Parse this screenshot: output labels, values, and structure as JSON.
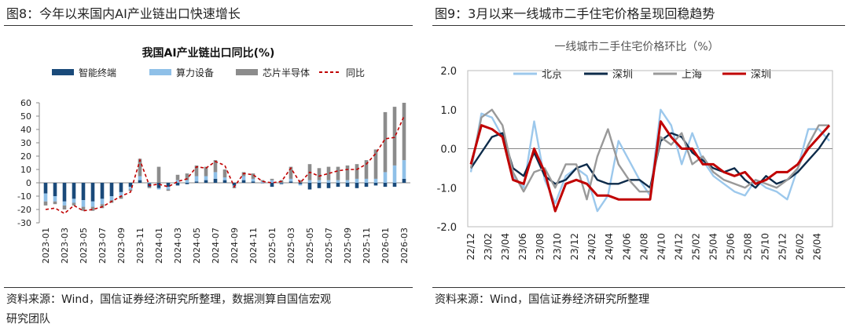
{
  "left_panel": {
    "figure_title": "图8：今年以来国内AI产业链出口快速增长",
    "source_line1": "资料来源：Wind，国信证券经济研究所整理，数据测算自国信宏观",
    "source_line2": "研究团队"
  },
  "right_panel": {
    "figure_title": "图9：3月以来一线城市二手住宅价格呈现回稳趋势",
    "source": "资料来源：Wind，国信证券经济研究所整理"
  },
  "colors": {
    "dark_blue": "#1a4a7a",
    "light_blue": "#8fc0e8",
    "gray": "#8c8c8c",
    "red": "#c00000",
    "beijing": "#9cc8ec",
    "shanghai_line": "#999999",
    "shenzhen_dark": "#0d2b4a"
  },
  "chart_data": [
    {
      "type": "bar",
      "title": "我国AI产业链出口同比(%)",
      "stacked": true,
      "ylim": [
        -30,
        60
      ],
      "y_ticks": [
        -30,
        -20,
        -10,
        0,
        10,
        20,
        30,
        40,
        50,
        60
      ],
      "x_tick_labels": [
        "2023-01",
        "2023-03",
        "2023-05",
        "2023-07",
        "2023-09",
        "2023-11",
        "2024-01",
        "2024-03",
        "2024-05",
        "2024-07",
        "2024-09",
        "2024-11",
        "2025-01",
        "2025-03",
        "2025-05",
        "2025-07",
        "2025-09",
        "2025-11",
        "2026-01",
        "2026-03"
      ],
      "categories": [
        "2023-01",
        "2023-02",
        "2023-03",
        "2023-04",
        "2023-05",
        "2023-06",
        "2023-07",
        "2023-08",
        "2023-09",
        "2023-10",
        "2023-11",
        "2023-12",
        "2024-01",
        "2024-02",
        "2024-03",
        "2024-04",
        "2024-05",
        "2024-06",
        "2024-07",
        "2024-08",
        "2024-09",
        "2024-10",
        "2024-11",
        "2024-12",
        "2025-01",
        "2025-02",
        "2025-03",
        "2025-04",
        "2025-05",
        "2025-06",
        "2025-07",
        "2025-08",
        "2025-09",
        "2025-10",
        "2025-11",
        "2025-12",
        "2026-01",
        "2026-02",
        "2026-03"
      ],
      "legend_position": "top",
      "series": [
        {
          "name": "智能终端",
          "kind": "bar",
          "color": "#1a4a7a",
          "values": [
            -8,
            -10,
            -14,
            -12,
            -13,
            -14,
            -12,
            -10,
            -7,
            -3,
            2,
            -3,
            -4,
            -3,
            -2,
            -1,
            1,
            2,
            3,
            2,
            -2,
            2,
            1,
            0,
            -3,
            -1,
            1,
            -1,
            -5,
            -4,
            -4,
            -3,
            -3,
            -4,
            -3,
            -2,
            -3,
            -3,
            3
          ]
        },
        {
          "name": "算力设备",
          "kind": "bar",
          "color": "#8fc0e8",
          "values": [
            -6,
            -4,
            -3,
            -3,
            -5,
            -4,
            -4,
            -3,
            -3,
            -2,
            3,
            0,
            -1,
            -2,
            2,
            2,
            4,
            3,
            5,
            2,
            -1,
            3,
            2,
            1,
            2,
            0,
            2,
            -1,
            2,
            2,
            2,
            2,
            2,
            3,
            3,
            3,
            8,
            13,
            14
          ]
        },
        {
          "name": "芯片半导体",
          "kind": "bar",
          "color": "#8c8c8c",
          "values": [
            -3,
            -2,
            -3,
            -2,
            -3,
            -3,
            -3,
            -2,
            -2,
            -1,
            13,
            -1,
            12,
            -1,
            4,
            5,
            8,
            7,
            9,
            6,
            -1,
            3,
            4,
            1,
            1,
            2,
            9,
            2,
            12,
            9,
            10,
            10,
            11,
            11,
            14,
            22,
            45,
            44,
            43
          ]
        },
        {
          "name": "同比",
          "kind": "line",
          "color": "#c00000",
          "values": [
            -20,
            -19,
            -23,
            -17,
            -21,
            -20,
            -18,
            -14,
            -10,
            -7,
            17,
            -2,
            -1,
            -3,
            1,
            3,
            12,
            11,
            16,
            13,
            -3,
            7,
            6,
            1,
            0,
            1,
            11,
            0,
            8,
            5,
            7,
            9,
            10,
            10,
            14,
            22,
            33,
            34,
            50
          ]
        }
      ]
    },
    {
      "type": "line",
      "title": "一线城市二手住宅价格环比（%）",
      "ylim": [
        -2.0,
        2.0
      ],
      "y_ticks": [
        "2.0",
        "1.0",
        "0.0",
        "-1.0",
        "-2.0"
      ],
      "x_tick_labels": [
        "22/12",
        "23/02",
        "23/04",
        "23/06",
        "23/08",
        "23/10",
        "23/12",
        "24/02",
        "24/04",
        "24/06",
        "24/08",
        "24/10",
        "24/12",
        "25/02",
        "25/04",
        "25/06",
        "25/08",
        "25/10",
        "25/12",
        "26/02",
        "26/04"
      ],
      "legend_position": "top",
      "series": [
        {
          "name": "北京",
          "color": "#9cc8ec",
          "values": [
            -0.6,
            0.9,
            0.8,
            0.3,
            -0.7,
            -1.0,
            0.7,
            -0.8,
            -1.4,
            -0.7,
            -0.5,
            -0.7,
            -1.6,
            -1.2,
            0.2,
            -0.3,
            -0.8,
            -1.2,
            1.0,
            0.6,
            -0.4,
            0.4,
            -0.3,
            -0.7,
            -0.9,
            -1.1,
            -1.2,
            -0.8,
            -1.0,
            -1.1,
            -1.3,
            -0.5,
            0.5,
            0.5,
            0.2
          ]
        },
        {
          "name": "深圳",
          "color": "#0d2b4a",
          "values": [
            -0.5,
            -0.1,
            0.3,
            0.4,
            -0.5,
            -0.7,
            -0.1,
            -0.7,
            -0.9,
            -0.8,
            -0.5,
            -0.4,
            -0.8,
            -0.9,
            -0.9,
            -0.8,
            -0.8,
            -1.0,
            0.2,
            0.4,
            0.3,
            -0.1,
            -0.3,
            -0.5,
            -0.6,
            -0.5,
            -0.8,
            -1.0,
            -0.7,
            -0.9,
            -0.8,
            -0.6,
            -0.3,
            0.0,
            0.4
          ]
        },
        {
          "name": "上海",
          "color": "#999999",
          "values": [
            -0.5,
            0.8,
            1.0,
            0.6,
            -0.6,
            -1.1,
            -0.6,
            -0.5,
            -1.0,
            -0.4,
            -0.4,
            -1.3,
            -0.2,
            0.5,
            -0.4,
            -0.8,
            -1.1,
            -1.1,
            0.3,
            0.1,
            0.4,
            -0.4,
            -0.2,
            -0.6,
            -0.8,
            -0.9,
            -1.0,
            -0.8,
            -0.9,
            -1.0,
            -0.8,
            -0.5,
            0.1,
            0.6,
            0.6
          ]
        },
        {
          "name": "深圳",
          "color": "#c00000",
          "values": [
            -0.4,
            0.6,
            0.5,
            0.3,
            -0.8,
            -0.9,
            0.0,
            -0.6,
            -1.6,
            -0.9,
            -0.8,
            -0.9,
            -1.2,
            -1.2,
            -1.3,
            -1.3,
            -1.3,
            -1.3,
            0.7,
            0.3,
            0.0,
            0.0,
            -0.4,
            -0.4,
            -0.6,
            -0.7,
            -0.6,
            -0.9,
            -0.8,
            -0.6,
            -0.6,
            -0.4,
            0.0,
            0.3,
            0.6
          ]
        }
      ]
    }
  ]
}
